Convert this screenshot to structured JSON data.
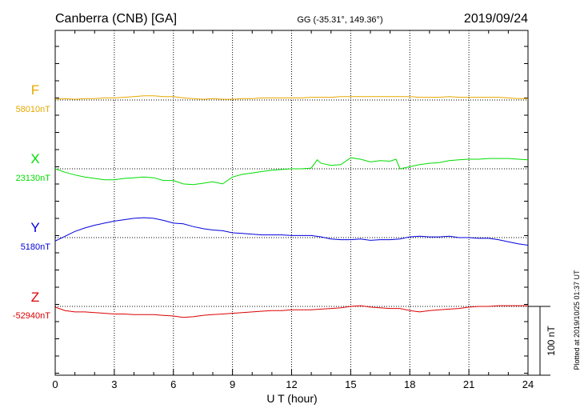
{
  "chart_data": {
    "type": "line",
    "station": "Canberra (CNB)  [GA]",
    "coords": "GG (-35.31°, 149.36°)",
    "date": "2019/09/24",
    "xlabel": "U T (hour)",
    "xlim": [
      0,
      24
    ],
    "xticks": [
      "0",
      "3",
      "6",
      "9",
      "12",
      "15",
      "18",
      "21",
      "24"
    ],
    "scale_label": "100 nT",
    "scale_nT": 100,
    "plotted_note": "Plotted at 2019/10/25 01:37 UT",
    "series": [
      {
        "name": "F",
        "baseline_label": "58010nT",
        "color": "#e8a800",
        "x": [
          0,
          0.5,
          1,
          1.5,
          2,
          2.5,
          3,
          3.5,
          4,
          4.5,
          5,
          5.5,
          6,
          6.5,
          7,
          7.5,
          8,
          8.5,
          9,
          9.5,
          10,
          10.5,
          11,
          11.5,
          12,
          12.5,
          13,
          13.5,
          14,
          14.5,
          15,
          15.5,
          16,
          16.5,
          17,
          17.5,
          18,
          18.5,
          19,
          19.5,
          20,
          20.5,
          21,
          21.5,
          22,
          22.5,
          23,
          23.5,
          24
        ],
        "values": [
          1,
          2,
          1,
          2,
          2,
          3,
          3,
          4,
          5,
          6,
          6,
          5,
          5,
          3,
          2,
          1,
          2,
          1,
          1,
          2,
          2,
          3,
          3,
          3,
          3,
          3,
          4,
          4,
          4,
          5,
          5,
          5,
          5,
          5,
          5,
          5,
          5,
          4,
          4,
          4,
          5,
          4,
          4,
          4,
          4,
          4,
          3,
          2,
          2
        ]
      },
      {
        "name": "X",
        "baseline_label": "23130nT",
        "color": "#00dd00",
        "x": [
          0,
          0.5,
          1,
          1.5,
          2,
          2.5,
          3,
          3.5,
          4,
          4.5,
          5,
          5.5,
          6,
          6.5,
          7,
          7.5,
          8,
          8.5,
          9,
          9.5,
          10,
          10.5,
          11,
          11.5,
          12,
          12.5,
          13,
          13.3,
          13.5,
          14,
          14.5,
          15,
          15.5,
          16,
          16.5,
          17,
          17.3,
          17.5,
          18,
          18.5,
          19,
          19.5,
          20,
          20.5,
          21,
          21.5,
          22,
          22.5,
          23,
          23.5,
          24
        ],
        "values": [
          0,
          -5,
          -9,
          -12,
          -14,
          -16,
          -16,
          -14,
          -13,
          -12,
          -13,
          -17,
          -17,
          -22,
          -23,
          -21,
          -19,
          -22,
          -12,
          -8,
          -6,
          -4,
          -2,
          -1,
          0,
          0,
          1,
          13,
          8,
          5,
          6,
          16,
          14,
          10,
          12,
          11,
          14,
          0,
          3,
          6,
          8,
          9,
          12,
          13,
          14,
          14,
          15,
          15,
          15,
          14,
          13
        ]
      },
      {
        "name": "Y",
        "baseline_label": "5180nT",
        "color": "#0000dd",
        "x": [
          0,
          0.5,
          1,
          1.5,
          2,
          2.5,
          3,
          3.5,
          4,
          4.5,
          5,
          5.5,
          6,
          6.5,
          7,
          7.5,
          8,
          8.5,
          9,
          9.5,
          10,
          10.5,
          11,
          11.5,
          12,
          12.5,
          13,
          13.5,
          14,
          14.5,
          15,
          15.5,
          16,
          16.5,
          17,
          17.5,
          18,
          18.5,
          19,
          19.5,
          20,
          20.5,
          21,
          21.5,
          22,
          22.5,
          23,
          23.5,
          24
        ],
        "values": [
          -5,
          2,
          9,
          14,
          18,
          21,
          24,
          26,
          28,
          29,
          28,
          25,
          21,
          20,
          16,
          13,
          11,
          10,
          7,
          6,
          5,
          4,
          4,
          4,
          3,
          3,
          3,
          1,
          -2,
          -3,
          -3,
          -2,
          -4,
          -3,
          -3,
          -2,
          1,
          2,
          1,
          1,
          2,
          0,
          0,
          -1,
          -1,
          -3,
          -6,
          -9,
          -11
        ]
      },
      {
        "name": "Z",
        "baseline_label": "-52940nT",
        "color": "#dd0000",
        "x": [
          0,
          0.5,
          1,
          1.5,
          2,
          2.5,
          3,
          3.5,
          4,
          4.5,
          5,
          5.5,
          6,
          6.5,
          7,
          7.5,
          8,
          8.5,
          9,
          9.5,
          10,
          10.5,
          11,
          11.5,
          12,
          12.5,
          13,
          13.5,
          14,
          14.5,
          15,
          15.5,
          16,
          16.5,
          17,
          17.5,
          18,
          18.5,
          19,
          19.5,
          20,
          20.5,
          21,
          21.5,
          22,
          22.5,
          23,
          23.5,
          24
        ],
        "values": [
          -1,
          -6,
          -8,
          -8,
          -9,
          -10,
          -11,
          -11,
          -12,
          -12,
          -12,
          -13,
          -14,
          -16,
          -15,
          -13,
          -12,
          -11,
          -10,
          -9,
          -8,
          -7,
          -6,
          -6,
          -5,
          -5,
          -5,
          -4,
          -3,
          -2,
          0,
          1,
          -1,
          -2,
          -3,
          -3,
          -6,
          -8,
          -6,
          -5,
          -4,
          -3,
          -1,
          0,
          0,
          1,
          1,
          1,
          1
        ]
      }
    ]
  }
}
